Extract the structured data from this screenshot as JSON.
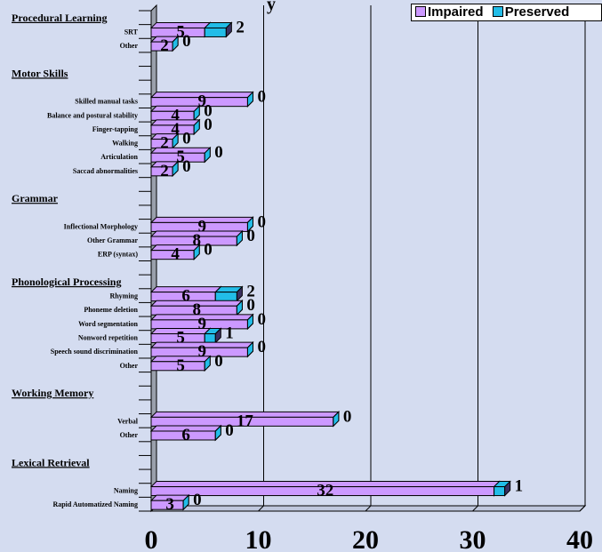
{
  "chart_data": {
    "type": "bar",
    "orientation": "horizontal",
    "stacked": true,
    "title": "",
    "xlabel": "",
    "ylabel": "",
    "xlim": [
      0,
      40
    ],
    "x_ticks": [
      "0",
      "10",
      "20",
      "30",
      "40"
    ],
    "grid": "vertical",
    "legend_position": "top-right",
    "colors": {
      "Impaired": "#cc99ff",
      "Preserved": "#22bde8",
      "background": "#d4dcf0"
    },
    "series": [
      {
        "name": "Impaired"
      },
      {
        "name": "Preserved"
      }
    ],
    "rows": [
      {
        "label": "Procedural Learning",
        "header": true
      },
      {
        "label": "SRT",
        "impaired": 5,
        "preserved": 2
      },
      {
        "label": "Other",
        "impaired": 2,
        "preserved": 0
      },
      {
        "label": "",
        "spacer": true
      },
      {
        "label": "Motor Skills",
        "header": true
      },
      {
        "label": "",
        "spacer": true
      },
      {
        "label": "Skilled manual tasks",
        "impaired": 9,
        "preserved": 0
      },
      {
        "label": "Balance and postural stability",
        "impaired": 4,
        "preserved": 0
      },
      {
        "label": "Finger-tapping",
        "impaired": 4,
        "preserved": 0
      },
      {
        "label": "Walking",
        "impaired": 2,
        "preserved": 0
      },
      {
        "label": "Articulation",
        "impaired": 5,
        "preserved": 0
      },
      {
        "label": "Saccad abnormalities",
        "impaired": 2,
        "preserved": 0
      },
      {
        "label": "",
        "spacer": true
      },
      {
        "label": "Grammar",
        "header": true
      },
      {
        "label": "",
        "spacer": true
      },
      {
        "label": "Inflectional Morphology",
        "impaired": 9,
        "preserved": 0
      },
      {
        "label": "Other Grammar",
        "impaired": 8,
        "preserved": 0
      },
      {
        "label": "ERP (syntax)",
        "impaired": 4,
        "preserved": 0
      },
      {
        "label": "",
        "spacer": true
      },
      {
        "label": "Phonological Processing",
        "header": true
      },
      {
        "label": "Rhyming",
        "impaired": 6,
        "preserved": 2
      },
      {
        "label": "Phoneme deletion",
        "impaired": 8,
        "preserved": 0
      },
      {
        "label": "Word segmentation",
        "impaired": 9,
        "preserved": 0
      },
      {
        "label": "Nonword repetition",
        "impaired": 5,
        "preserved": 1
      },
      {
        "label": "Speech sound discrimination",
        "impaired": 9,
        "preserved": 0
      },
      {
        "label": "Other",
        "impaired": 5,
        "preserved": 0
      },
      {
        "label": "",
        "spacer": true
      },
      {
        "label": "Working Memory",
        "header": true
      },
      {
        "label": "",
        "spacer": true
      },
      {
        "label": "Verbal",
        "impaired": 17,
        "preserved": 0
      },
      {
        "label": "Other",
        "impaired": 6,
        "preserved": 0
      },
      {
        "label": "",
        "spacer": true
      },
      {
        "label": "Lexical Retrieval",
        "header": true
      },
      {
        "label": "",
        "spacer": true
      },
      {
        "label": "Naming",
        "impaired": 32,
        "preserved": 1
      },
      {
        "label": "Rapid Automatized Naming",
        "impaired": 3,
        "preserved": 0
      }
    ]
  },
  "legend": {
    "impaired_label": "Impaired",
    "preserved_label": "Preserved"
  },
  "title_fragment": "y"
}
